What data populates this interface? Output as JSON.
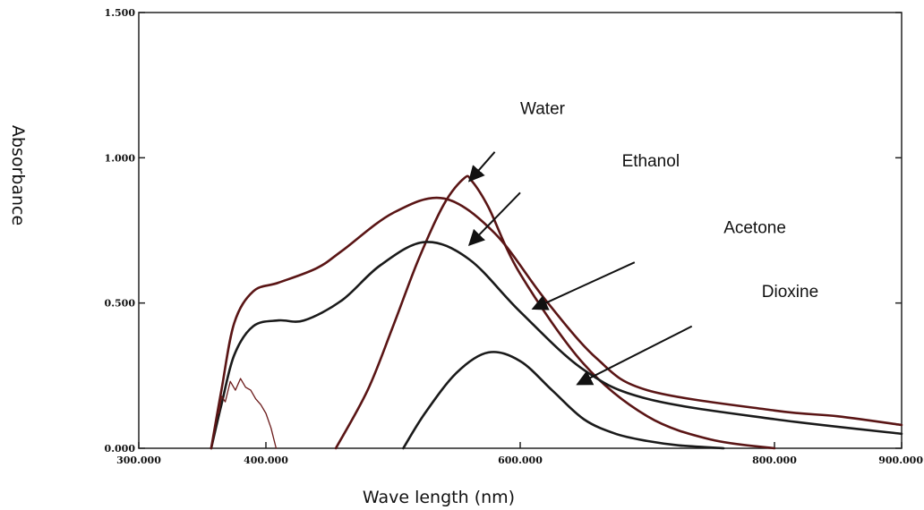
{
  "chart_data": {
    "type": "line",
    "xlabel": "Wave length (nm)",
    "ylabel": "Absorbance",
    "xlim": [
      300,
      900
    ],
    "ylim": [
      0,
      1.5
    ],
    "x_ticks": [
      "300.000",
      "400.000",
      "600.000",
      "800.000",
      "900.000"
    ],
    "x_tick_values": [
      300,
      400,
      600,
      800,
      900
    ],
    "y_ticks": [
      "0.000",
      "0.500",
      "1.000",
      "1.500"
    ],
    "y_tick_values": [
      0,
      0.5,
      1.0,
      1.5
    ],
    "grid": false,
    "colors": {
      "dark": "#1a1a1a",
      "brown": "#5a1515",
      "axis": "#222222"
    },
    "series": [
      {
        "name": "Water",
        "color": "#5a1515",
        "x": [
          455,
          480,
          500,
          520,
          540,
          556,
          562,
          575,
          600,
          650,
          700,
          750,
          800
        ],
        "y": [
          0.0,
          0.2,
          0.42,
          0.65,
          0.84,
          0.93,
          0.92,
          0.83,
          0.6,
          0.29,
          0.11,
          0.03,
          0.0
        ]
      },
      {
        "name": "Ethanol",
        "color": "#1a1a1a",
        "x": [
          357,
          365,
          375,
          390,
          410,
          430,
          460,
          490,
          525,
          560,
          600,
          650,
          700,
          800,
          900
        ],
        "y": [
          0.0,
          0.15,
          0.32,
          0.42,
          0.44,
          0.44,
          0.51,
          0.63,
          0.71,
          0.65,
          0.47,
          0.27,
          0.17,
          0.1,
          0.05
        ]
      },
      {
        "name": "Acetone",
        "color": "#5a1515",
        "x": [
          357,
          365,
          375,
          390,
          410,
          440,
          460,
          500,
          540,
          580,
          620,
          660,
          700,
          800,
          850,
          900
        ],
        "y": [
          0.0,
          0.2,
          0.43,
          0.54,
          0.57,
          0.62,
          0.68,
          0.81,
          0.86,
          0.74,
          0.51,
          0.31,
          0.2,
          0.13,
          0.11,
          0.08
        ]
      },
      {
        "name": "Dioxine",
        "color": "#1a1a1a",
        "x": [
          508,
          525,
          550,
          575,
          600,
          625,
          650,
          675,
          700,
          725,
          760
        ],
        "y": [
          0.0,
          0.12,
          0.26,
          0.33,
          0.3,
          0.2,
          0.1,
          0.05,
          0.025,
          0.01,
          0.0
        ]
      },
      {
        "name": "",
        "color": "#6a1a1a",
        "x": [
          363,
          365,
          368,
          372,
          376,
          380,
          384,
          388,
          392,
          396,
          400,
          404,
          408
        ],
        "y": [
          0.12,
          0.18,
          0.16,
          0.23,
          0.2,
          0.24,
          0.21,
          0.2,
          0.17,
          0.15,
          0.12,
          0.07,
          0.0
        ]
      }
    ],
    "annotations": [
      {
        "text": "Water",
        "label_x": 600,
        "label_y": 1.15,
        "arrow_from": [
          580,
          1.02
        ],
        "arrow_to": [
          560,
          0.92
        ]
      },
      {
        "text": "Ethanol",
        "label_x": 680,
        "label_y": 0.97,
        "arrow_from": [
          600,
          0.88
        ],
        "arrow_to": [
          560,
          0.7
        ]
      },
      {
        "text": "Acetone",
        "label_x": 760,
        "label_y": 0.74,
        "arrow_from": [
          690,
          0.64
        ],
        "arrow_to": [
          610,
          0.48
        ]
      },
      {
        "text": "Dioxine",
        "label_x": 790,
        "label_y": 0.52,
        "arrow_from": [
          735,
          0.42
        ],
        "arrow_to": [
          645,
          0.22
        ]
      }
    ]
  }
}
